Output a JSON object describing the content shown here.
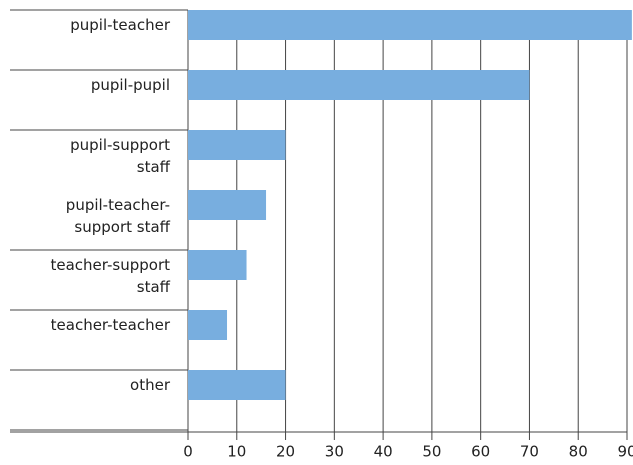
{
  "chart_data": {
    "type": "bar",
    "orientation": "horizontal",
    "categories": [
      "pupil-teacher",
      "pupil-pupil",
      "pupil-support staff",
      "pupil-teacher-support staff",
      "teacher-support staff",
      "teacher-teacher",
      "other"
    ],
    "values": [
      91,
      70,
      20,
      16,
      12,
      8,
      20
    ],
    "color": "#78aedf",
    "xlim": [
      0,
      90
    ],
    "xticks": [
      0,
      10,
      20,
      30,
      40,
      50,
      60,
      70,
      80,
      90
    ],
    "grid": true
  }
}
